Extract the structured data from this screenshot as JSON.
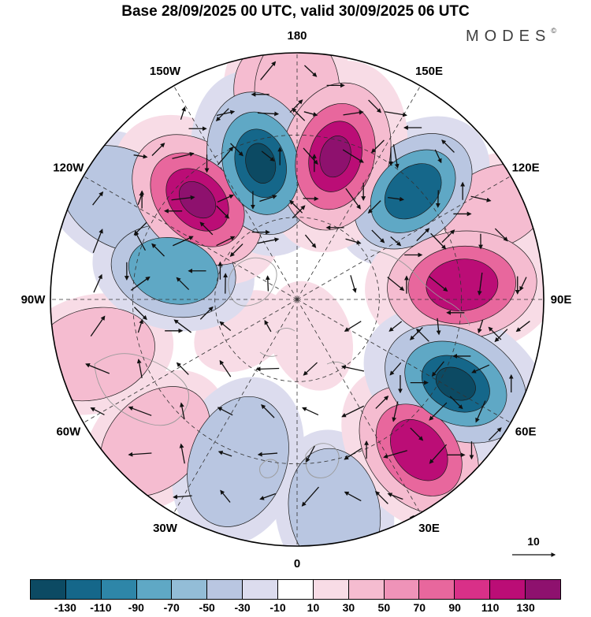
{
  "header": {
    "title": "Base 28/09/2025 00 UTC, valid 30/09/2025 06 UTC",
    "logo": "MODES",
    "logo_mark": "©"
  },
  "map": {
    "projection": "north-polar-stereographic",
    "outer_latitude": 20,
    "graticule_labels": [
      {
        "label": "180",
        "lon": 180
      },
      {
        "label": "150W",
        "lon": -150
      },
      {
        "label": "150E",
        "lon": 150
      },
      {
        "label": "120W",
        "lon": -120
      },
      {
        "label": "120E",
        "lon": 120
      },
      {
        "label": "90W",
        "lon": -90
      },
      {
        "label": "90E",
        "lon": 90
      },
      {
        "label": "60W",
        "lon": -60
      },
      {
        "label": "60E",
        "lon": 60
      },
      {
        "label": "30W",
        "lon": -30
      },
      {
        "label": "30E",
        "lon": 30
      },
      {
        "label": "0",
        "lon": 0
      }
    ],
    "vector_reference": {
      "label": "10"
    }
  },
  "chart_data": {
    "type": "heatmap",
    "title": "Base 28/09/2025 00 UTC, valid 30/09/2025 06 UTC",
    "legend_position": "bottom",
    "colorbar": {
      "tick_labels": [
        -130,
        -110,
        -90,
        -70,
        -50,
        -30,
        -10,
        10,
        30,
        50,
        70,
        90,
        110,
        130
      ],
      "colors": [
        "#0c4a63",
        "#15678a",
        "#2e86a8",
        "#5fa8c5",
        "#93bdd7",
        "#b9c6e1",
        "#dcdcee",
        "#ffffff",
        "#f8dce6",
        "#f5bcd0",
        "#ef93b8",
        "#e8679d",
        "#d93088",
        "#bb0d76",
        "#8e116e"
      ]
    },
    "anomaly_centers": [
      {
        "lon": -120,
        "lat": 33,
        "value": -30,
        "size": 85
      },
      {
        "lon": 10,
        "lat": 29,
        "value": -30,
        "size": 80
      },
      {
        "lon": -75,
        "lat": 30,
        "value": 30,
        "size": 80
      },
      {
        "lon": 115,
        "lat": 28,
        "value": 40,
        "size": 70
      },
      {
        "lon": -172,
        "lat": 31,
        "value": 40,
        "size": 60
      },
      {
        "lon": 20,
        "lat": 79,
        "value": 20,
        "size": 55
      },
      {
        "lon": -60,
        "lat": 72,
        "value": 20,
        "size": 50
      },
      {
        "lon": 180,
        "lat": 31,
        "value": 50,
        "size": 75
      },
      {
        "lon": -45,
        "lat": 33,
        "value": 60,
        "size": 80
      },
      {
        "lon": -20,
        "lat": 41,
        "value": -60,
        "size": 85
      },
      {
        "lon": -103,
        "lat": 54,
        "value": -80,
        "size": 80
      },
      {
        "lon": 133,
        "lat": 45,
        "value": -110,
        "size": 85
      },
      {
        "lon": 39,
        "lat": 35,
        "value": 120,
        "size": 90
      },
      {
        "lon": 95,
        "lat": 43,
        "value": 125,
        "size": 95
      },
      {
        "lon": -135,
        "lat": 50,
        "value": 135,
        "size": 95
      },
      {
        "lon": -165,
        "lat": 50,
        "value": -135,
        "size": 92
      },
      {
        "lon": 165,
        "lat": 48,
        "value": 140,
        "size": 95
      },
      {
        "lon": 62,
        "lat": 39,
        "value": -140,
        "size": 95
      }
    ]
  }
}
